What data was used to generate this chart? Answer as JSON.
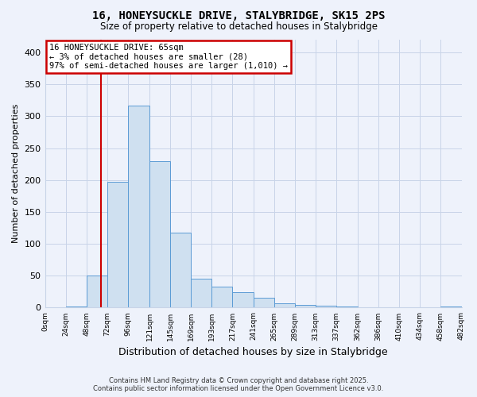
{
  "title": "16, HONEYSUCKLE DRIVE, STALYBRIDGE, SK15 2PS",
  "subtitle": "Size of property relative to detached houses in Stalybridge",
  "xlabel": "Distribution of detached houses by size in Stalybridge",
  "ylabel": "Number of detached properties",
  "bar_values": [
    0,
    2,
    50,
    197,
    317,
    230,
    117,
    45,
    33,
    24,
    15,
    7,
    4,
    3,
    2,
    1,
    1,
    1,
    0,
    2
  ],
  "bin_edges": [
    0,
    24,
    48,
    72,
    96,
    121,
    145,
    169,
    193,
    217,
    241,
    265,
    289,
    313,
    337,
    362,
    386,
    410,
    434,
    458,
    482
  ],
  "bar_color": "#cfe0f0",
  "bar_edge_color": "#5b9bd5",
  "ylim": [
    0,
    420
  ],
  "yticks": [
    0,
    50,
    100,
    150,
    200,
    250,
    300,
    350,
    400
  ],
  "property_size": 65,
  "vline_color": "#cc0000",
  "annotation_title": "16 HONEYSUCKLE DRIVE: 65sqm",
  "annotation_line1": "← 3% of detached houses are smaller (28)",
  "annotation_line2": "97% of semi-detached houses are larger (1,010) →",
  "annotation_box_color": "#cc0000",
  "footnote1": "Contains HM Land Registry data © Crown copyright and database right 2025.",
  "footnote2": "Contains public sector information licensed under the Open Government Licence v3.0.",
  "bg_color": "#eef2fb",
  "grid_color": "#c8d4e8"
}
